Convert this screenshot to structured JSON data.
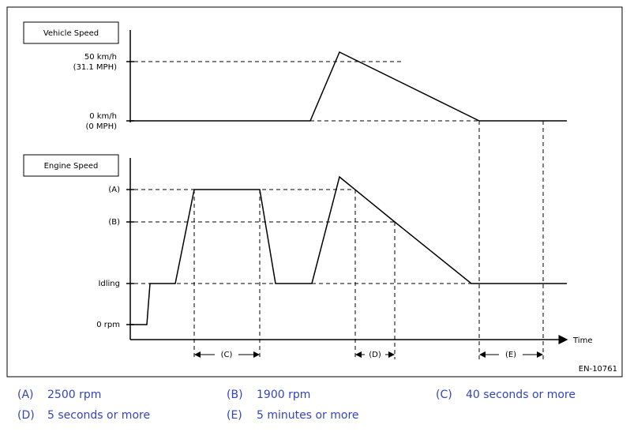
{
  "diagram": {
    "vehicle_panel": {
      "title": "Vehicle Speed",
      "labels": [
        "50 km/h",
        "(31.1 MPH)",
        "0 km/h",
        "(0 MPH)"
      ]
    },
    "engine_panel": {
      "title": "Engine Speed",
      "labels": [
        "(A)",
        "(B)",
        "Idling",
        "0 rpm"
      ]
    },
    "x_axis": "Time",
    "intervals": [
      "(C)",
      "(D)",
      "(E)"
    ],
    "code": "EN-10761"
  },
  "legend": [
    {
      "key": "(A)",
      "text": "2500 rpm"
    },
    {
      "key": "(B)",
      "text": "1900 rpm"
    },
    {
      "key": "(C)",
      "text": "40 seconds or more"
    },
    {
      "key": "(D)",
      "text": "5 seconds or more"
    },
    {
      "key": "(E)",
      "text": "5 minutes or more"
    }
  ]
}
